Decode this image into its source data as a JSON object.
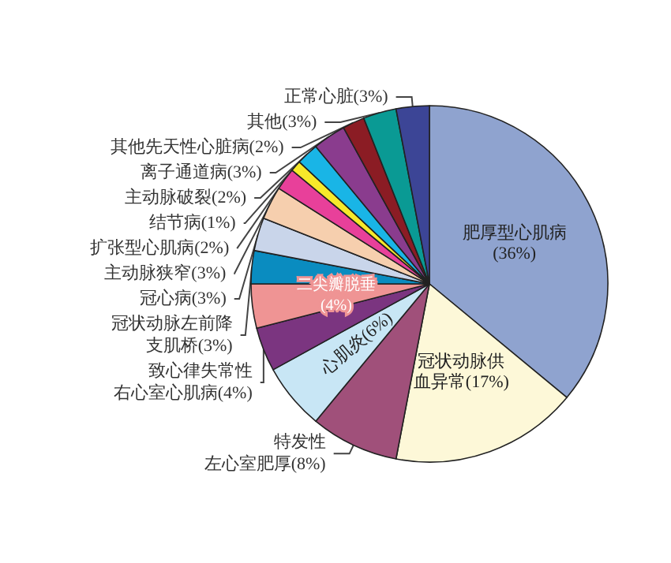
{
  "chart_data": {
    "type": "pie",
    "categories": [
      "肥厚型心肌病",
      "冠状动脉供血异常",
      "特发性左心室肥厚",
      "心肌炎",
      "致心律失常性右心室心肌病",
      "二尖瓣脱垂",
      "冠状动脉左前降支肌桥",
      "冠心病",
      "主动脉狭窄",
      "扩张型心肌病",
      "结节病",
      "主动脉破裂",
      "离子通道病",
      "其他先天性心脏病",
      "其他",
      "正常心脏"
    ],
    "values": [
      36,
      17,
      8,
      6,
      4,
      4,
      3,
      3,
      3,
      2,
      1,
      2,
      3,
      2,
      3,
      3
    ],
    "value_labels": [
      "(36%)",
      "(17%)",
      "(8%)",
      "(6%)",
      "(4%)",
      "(4%)",
      "(3%)",
      "(3%)",
      "(3%)",
      "(2%)",
      "(1%)",
      "(2%)",
      "(3%)",
      "(2%)",
      "(3%)",
      "(3%)"
    ],
    "colors": [
      "#8fa3cf",
      "#fdf8d8",
      "#a0507a",
      "#c8e6f5",
      "#7b3580",
      "#ef9494",
      "#0a8cc0",
      "#c9d5ea",
      "#f6cfae",
      "#e8409a",
      "#f7e92a",
      "#19b5e6",
      "#8a3c8e",
      "#8b1c24",
      "#0a9a94",
      "#3c4596"
    ]
  }
}
